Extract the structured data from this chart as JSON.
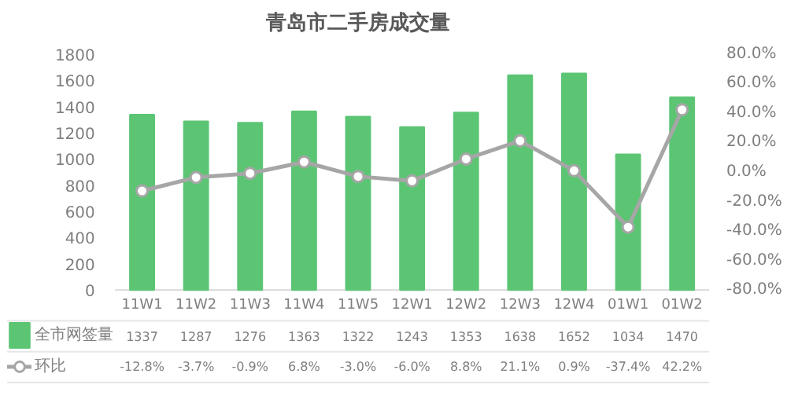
{
  "chart_data": {
    "type": "bar",
    "title": "青岛市二手房成交量",
    "categories": [
      "11W1",
      "11W2",
      "11W3",
      "11W4",
      "11W5",
      "12W1",
      "12W2",
      "12W3",
      "12W4",
      "01W1",
      "01W2"
    ],
    "series": [
      {
        "name": "全市网签量",
        "color": "#5cc574",
        "values": [
          1337,
          1287,
          1276,
          1363,
          1322,
          1243,
          1353,
          1638,
          1652,
          1034,
          1470
        ],
        "value_labels": [
          "1337",
          "1287",
          "1276",
          "1363",
          "1322",
          "1243",
          "1353",
          "1638",
          "1652",
          "1034",
          "1470"
        ]
      },
      {
        "name": "环比",
        "type": "line",
        "axis": "y2",
        "color": "#a6a6a6",
        "marker": "circle",
        "values": [
          -12.8,
          -3.7,
          -0.9,
          6.8,
          -3.0,
          -6.0,
          8.8,
          21.1,
          0.9,
          -37.4,
          42.2
        ],
        "value_labels": [
          "-12.8%",
          "-3.7%",
          "-0.9%",
          "6.8%",
          "-3.0%",
          "-6.0%",
          "8.8%",
          "21.1%",
          "0.9%",
          "-37.4%",
          "42.2%"
        ]
      }
    ],
    "ylim": [
      0,
      1800
    ],
    "yticks": [
      0,
      200,
      400,
      600,
      800,
      1000,
      1200,
      1400,
      1600,
      1800
    ],
    "y2lim": [
      -80,
      80
    ],
    "y2ticks": [
      {
        "value": -80,
        "label": "-80.0%"
      },
      {
        "value": -60,
        "label": "-60.0%"
      },
      {
        "value": -40,
        "label": "-40.0%"
      },
      {
        "value": -20,
        "label": "-20.0%"
      },
      {
        "value": 0,
        "label": "0.0%"
      },
      {
        "value": 20,
        "label": "20.0%"
      },
      {
        "value": 40,
        "label": "40.0%"
      },
      {
        "value": 60,
        "label": "60.0%"
      },
      {
        "value": 80,
        "label": "80.0%"
      }
    ],
    "legend": "bottom",
    "grid": false
  }
}
